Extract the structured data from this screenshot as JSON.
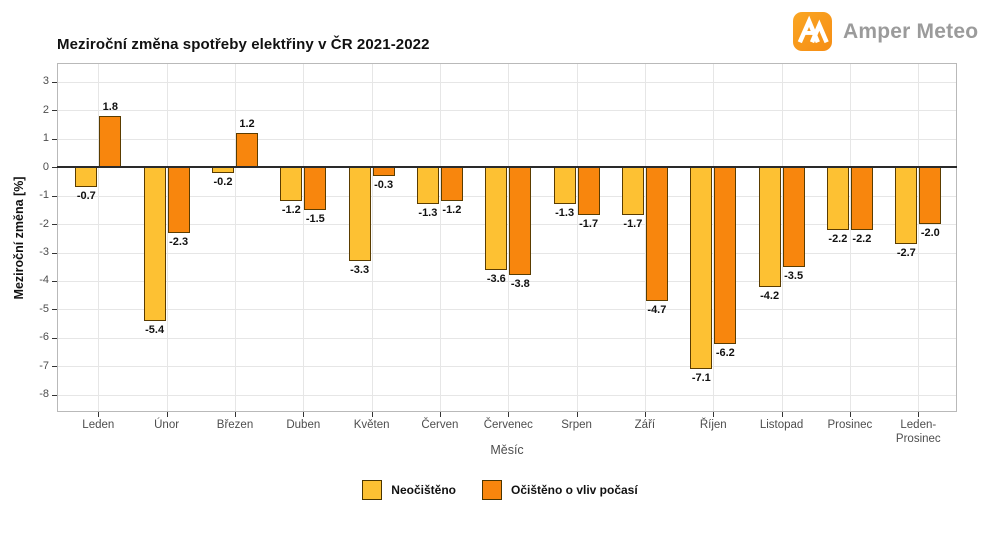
{
  "logo": {
    "text": "Amper Meteo",
    "mark_color": "#F89B1B"
  },
  "chart_data": {
    "type": "bar",
    "title": "Meziroční změna spotřeby elektřiny v ČR 2021-2022",
    "xlabel": "Měsíc",
    "ylabel": "Meziroční změna [%]",
    "categories": [
      "Leden",
      "Únor",
      "Březen",
      "Duben",
      "Květen",
      "Červen",
      "Červenec",
      "Srpen",
      "Září",
      "Říjen",
      "Listopad",
      "Prosinec",
      "Leden-Prosinec"
    ],
    "series": [
      {
        "name": "Neočištěno",
        "color": "#FDC133",
        "values": [
          -0.7,
          -5.4,
          -0.2,
          -1.2,
          -3.3,
          -1.3,
          -3.6,
          -1.3,
          -1.7,
          -7.1,
          -4.2,
          -2.2,
          -2.7
        ]
      },
      {
        "name": "Očištěno o vliv počasí",
        "color": "#F8860D",
        "values": [
          1.8,
          -2.3,
          1.2,
          -1.5,
          -0.3,
          -1.2,
          -3.8,
          -1.7,
          -4.7,
          -6.2,
          -3.5,
          -2.2,
          -2.0
        ]
      }
    ],
    "yticks": [
      3,
      2,
      1,
      0,
      -1,
      -2,
      -3,
      -4,
      -5,
      -6,
      -7,
      -8
    ],
    "ylim": [
      -8.6,
      3.65
    ],
    "grid": true,
    "zero_line": true,
    "value_labels": true,
    "legend_position": "bottom",
    "grid_color": "#e6e6e6"
  }
}
